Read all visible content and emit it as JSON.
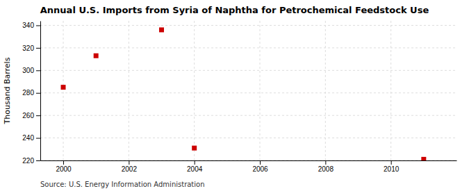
{
  "chart_data": {
    "type": "scatter",
    "title": "Annual U.S. Imports from Syria of Naphtha for Petrochemical Feedstock Use",
    "ylabel": "Thousand Barrels",
    "source": "Source: U.S. Energy Information Administration",
    "x": [
      2000,
      2001,
      2003,
      2004,
      2011
    ],
    "values": [
      285,
      313,
      336,
      231,
      221
    ],
    "color": "#cc0000",
    "marker": "square",
    "xlim": [
      1999.3,
      2012
    ],
    "xticks": [
      2000,
      2002,
      2004,
      2006,
      2008,
      2010
    ],
    "ylim": [
      220,
      344
    ],
    "yticks": [
      220,
      240,
      260,
      280,
      300,
      320,
      340
    ],
    "grid": true
  }
}
